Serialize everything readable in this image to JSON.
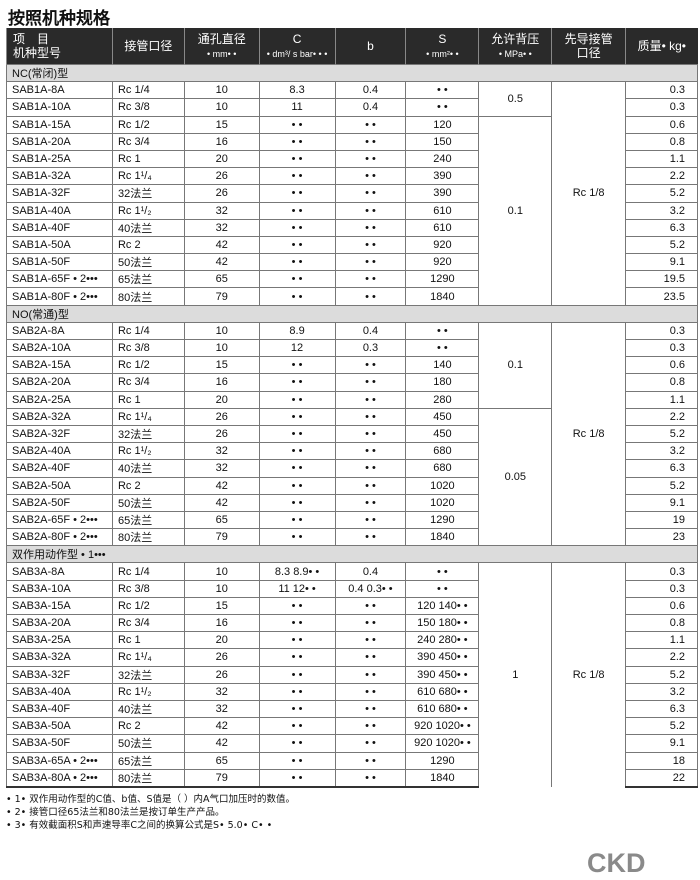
{
  "title": "按照机种规格",
  "headers": {
    "item": "项　目",
    "model": "机种型号",
    "port": "接管口径",
    "dia": "通孔直径",
    "dia_unit": "• mm• •",
    "c": "C",
    "c_unit": "• dm³/ s bar• • •",
    "b": "b",
    "s": "S",
    "s_unit": "• mm²• •",
    "bp": "允许背压",
    "bp_unit": "• MPa• •",
    "pilot1": "先导接管",
    "pilot2": "口径",
    "mass": "质量• kg•"
  },
  "sections": [
    {
      "title": "NC(常闭)型",
      "pilot": "Rc 1/8",
      "pressure": [
        {
          "value": "0.5",
          "rows": 2
        },
        {
          "value": "0.1",
          "rows": 11
        }
      ],
      "rows": [
        [
          "SAB1A-8A",
          "Rc 1/4",
          "10",
          "8.3",
          "0.4",
          "• •",
          "0.3"
        ],
        [
          "SAB1A-10A",
          "Rc 3/8",
          "10",
          "11",
          "0.4",
          "• •",
          "0.3"
        ],
        [
          "SAB1A-15A",
          "Rc 1/2",
          "15",
          "• •",
          "• •",
          "120",
          "0.6"
        ],
        [
          "SAB1A-20A",
          "Rc 3/4",
          "16",
          "• •",
          "• •",
          "150",
          "0.8"
        ],
        [
          "SAB1A-25A",
          "Rc 1",
          "20",
          "• •",
          "• •",
          "240",
          "1.1"
        ],
        [
          "SAB1A-32A",
          "Rc 1¹/₄",
          "26",
          "• •",
          "• •",
          "390",
          "2.2"
        ],
        [
          "SAB1A-32F",
          "32法兰",
          "26",
          "• •",
          "• •",
          "390",
          "5.2"
        ],
        [
          "SAB1A-40A",
          "Rc 1¹/₂",
          "32",
          "• •",
          "• •",
          "610",
          "3.2"
        ],
        [
          "SAB1A-40F",
          "40法兰",
          "32",
          "• •",
          "• •",
          "610",
          "6.3"
        ],
        [
          "SAB1A-50A",
          "Rc 2",
          "42",
          "• •",
          "• •",
          "920",
          "5.2"
        ],
        [
          "SAB1A-50F",
          "50法兰",
          "42",
          "• •",
          "• •",
          "920",
          "9.1"
        ],
        [
          "SAB1A-65F • 2•••",
          "65法兰",
          "65",
          "• •",
          "• •",
          "1290",
          "19.5"
        ],
        [
          "SAB1A-80F • 2•••",
          "80法兰",
          "79",
          "• •",
          "• •",
          "1840",
          "23.5"
        ]
      ]
    },
    {
      "title": "NO(常通)型",
      "pilot": "Rc 1/8",
      "pressure": [
        {
          "value": "0.1",
          "rows": 5
        },
        {
          "value": "0.05",
          "rows": 8
        }
      ],
      "rows": [
        [
          "SAB2A-8A",
          "Rc 1/4",
          "10",
          "8.9",
          "0.4",
          "• •",
          "0.3"
        ],
        [
          "SAB2A-10A",
          "Rc 3/8",
          "10",
          "12",
          "0.3",
          "• •",
          "0.3"
        ],
        [
          "SAB2A-15A",
          "Rc 1/2",
          "15",
          "• •",
          "• •",
          "140",
          "0.6"
        ],
        [
          "SAB2A-20A",
          "Rc 3/4",
          "16",
          "• •",
          "• •",
          "180",
          "0.8"
        ],
        [
          "SAB2A-25A",
          "Rc 1",
          "20",
          "• •",
          "• •",
          "280",
          "1.1"
        ],
        [
          "SAB2A-32A",
          "Rc 1¹/₄",
          "26",
          "• •",
          "• •",
          "450",
          "2.2"
        ],
        [
          "SAB2A-32F",
          "32法兰",
          "26",
          "• •",
          "• •",
          "450",
          "5.2"
        ],
        [
          "SAB2A-40A",
          "Rc 1¹/₂",
          "32",
          "• •",
          "• •",
          "680",
          "3.2"
        ],
        [
          "SAB2A-40F",
          "40法兰",
          "32",
          "• •",
          "• •",
          "680",
          "6.3"
        ],
        [
          "SAB2A-50A",
          "Rc 2",
          "42",
          "• •",
          "• •",
          "1020",
          "5.2"
        ],
        [
          "SAB2A-50F",
          "50法兰",
          "42",
          "• •",
          "• •",
          "1020",
          "9.1"
        ],
        [
          "SAB2A-65F • 2•••",
          "65法兰",
          "65",
          "• •",
          "• •",
          "1290",
          "19"
        ],
        [
          "SAB2A-80F • 2•••",
          "80法兰",
          "79",
          "• •",
          "• •",
          "1840",
          "23"
        ]
      ]
    },
    {
      "title": "双作用动作型 • 1•••",
      "pilot": "Rc 1/8",
      "pressure": [
        {
          "value": "1",
          "rows": 13
        }
      ],
      "rows": [
        [
          "SAB3A-8A",
          "Rc 1/4",
          "10",
          "8.3 8.9• •",
          "0.4",
          "• •",
          "0.3"
        ],
        [
          "SAB3A-10A",
          "Rc 3/8",
          "10",
          "11 12• •",
          "0.4 0.3• •",
          "• •",
          "0.3"
        ],
        [
          "SAB3A-15A",
          "Rc 1/2",
          "15",
          "• •",
          "• •",
          "120 140• •",
          "0.6"
        ],
        [
          "SAB3A-20A",
          "Rc 3/4",
          "16",
          "• •",
          "• •",
          "150 180• •",
          "0.8"
        ],
        [
          "SAB3A-25A",
          "Rc 1",
          "20",
          "• •",
          "• •",
          "240 280• •",
          "1.1"
        ],
        [
          "SAB3A-32A",
          "Rc 1¹/₄",
          "26",
          "• •",
          "• •",
          "390 450• •",
          "2.2"
        ],
        [
          "SAB3A-32F",
          "32法兰",
          "26",
          "• •",
          "• •",
          "390 450• •",
          "5.2"
        ],
        [
          "SAB3A-40A",
          "Rc 1¹/₂",
          "32",
          "• •",
          "• •",
          "610 680• •",
          "3.2"
        ],
        [
          "SAB3A-40F",
          "40法兰",
          "32",
          "• •",
          "• •",
          "610 680• •",
          "6.3"
        ],
        [
          "SAB3A-50A",
          "Rc 2",
          "42",
          "• •",
          "• •",
          "920 1020• •",
          "5.2"
        ],
        [
          "SAB3A-50F",
          "50法兰",
          "42",
          "• •",
          "• •",
          "920 1020• •",
          "9.1"
        ],
        [
          "SAB3A-65A • 2•••",
          "65法兰",
          "65",
          "• •",
          "• •",
          "1290",
          "18"
        ],
        [
          "SAB3A-80A • 2•••",
          "80法兰",
          "79",
          "• •",
          "• •",
          "1840",
          "22"
        ]
      ]
    }
  ],
  "notes": [
    "• 1• 双作用动作型的C值、b值、S值是（ ）内A气口加压时的数值。",
    "• 2• 接管口径65法兰和80法兰是按订单生产产品。",
    "• 3• 有效截面积S和声速导率C之间的换算公式是S• 5.0• C• •"
  ],
  "logo": "CKD"
}
